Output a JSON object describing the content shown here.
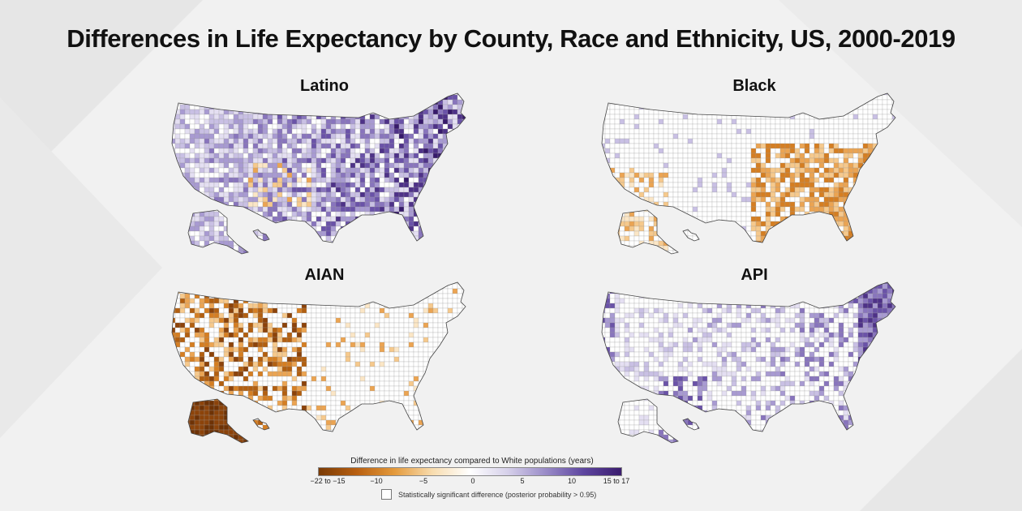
{
  "title": "Differences in Life Expectancy by County, Race and Ethnicity, US, 2000-2019",
  "panels": [
    {
      "id": "latino",
      "label": "Latino",
      "palette": "purple",
      "intensity": "high"
    },
    {
      "id": "black",
      "label": "Black",
      "palette": "orange",
      "intensity": "medium"
    },
    {
      "id": "aian",
      "label": "AIAN",
      "palette": "orange",
      "intensity": "high"
    },
    {
      "id": "api",
      "label": "API",
      "palette": "purple",
      "intensity": "medium"
    }
  ],
  "legend": {
    "title": "Difference in life expectancy compared to White populations (years)",
    "ticks": [
      "−22 to −15",
      "−10",
      "−5",
      "0",
      "5",
      "10",
      "15 to 17"
    ],
    "colors": [
      "#7a3b06",
      "#b85f10",
      "#e49a3c",
      "#f8dcae",
      "#ffffff",
      "#d6d0ea",
      "#9a8cc8",
      "#5e46a0",
      "#3b1d6e"
    ],
    "significance_label": "Statistically significant difference (posterior probability > 0.95)"
  },
  "colors": {
    "background": "#f1f1f1",
    "purple_dark": "#3b1d6e",
    "orange_dark": "#7a3b06"
  }
}
